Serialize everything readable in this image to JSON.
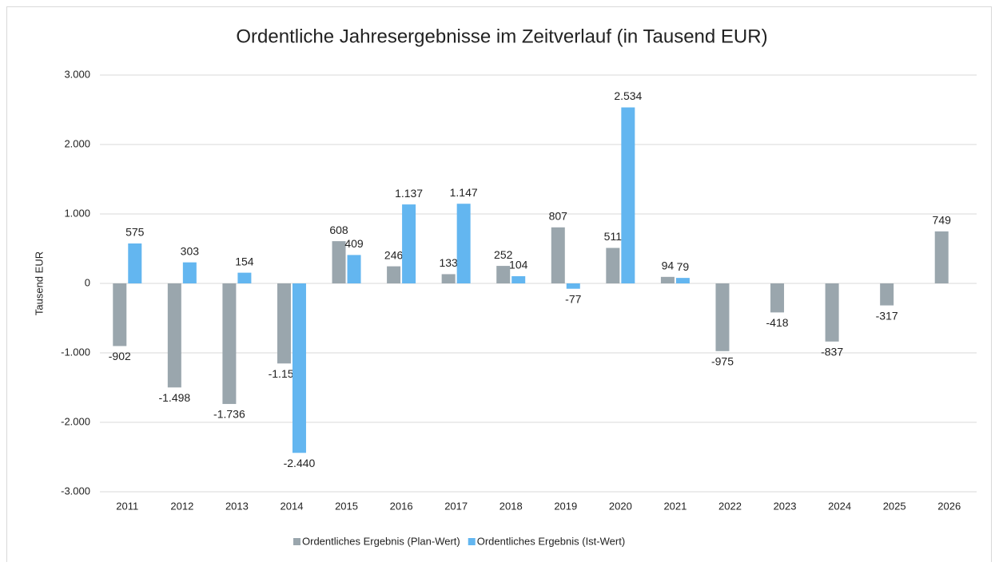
{
  "chart_data": {
    "type": "bar",
    "title": "Ordentliche Jahresergebnisse im Zeitverlauf (in Tausend EUR)",
    "y_label": "Tausend EUR",
    "categories": [
      "2011",
      "2012",
      "2013",
      "2014",
      "2015",
      "2016",
      "2017",
      "2018",
      "2019",
      "2020",
      "2021",
      "2022",
      "2023",
      "2024",
      "2025",
      "2026"
    ],
    "series": [
      {
        "name": "Ordentliches Ergebnis (Plan-Wert)",
        "color": "#9aa6ad",
        "values": [
          -902,
          -1498,
          -1736,
          -1153,
          608,
          246,
          133,
          252,
          807,
          511,
          94,
          -975,
          -418,
          -837,
          -317,
          749
        ],
        "value_labels": [
          "-902",
          "-1.498",
          "-1.736",
          "-1.153",
          "608",
          "246",
          "133",
          "252",
          "807",
          "511",
          "94",
          "-975",
          "-418",
          "-837",
          "-317",
          "749"
        ]
      },
      {
        "name": "Ordentliches Ergebnis (Ist-Wert)",
        "color": "#63b6f0",
        "values": [
          575,
          303,
          154,
          -2440,
          409,
          1137,
          1147,
          104,
          -77,
          2534,
          79,
          null,
          null,
          null,
          null,
          null
        ],
        "value_labels": [
          "575",
          "303",
          "154",
          "-2.440",
          "409",
          "1.137",
          "1.147",
          "104",
          "-77",
          "2.534",
          "79",
          null,
          null,
          null,
          null,
          null
        ]
      }
    ],
    "ylim": [
      -3000,
      3000
    ],
    "yticks": [
      {
        "value": -3000,
        "label": "-3.000"
      },
      {
        "value": -2000,
        "label": "-2.000"
      },
      {
        "value": -1000,
        "label": "-1.000"
      },
      0,
      {
        "value": 1000,
        "label": "1.000"
      },
      {
        "value": 2000,
        "label": "2.000"
      },
      {
        "value": 3000,
        "label": "3.000"
      }
    ],
    "grid": true,
    "legend": "bottom"
  }
}
